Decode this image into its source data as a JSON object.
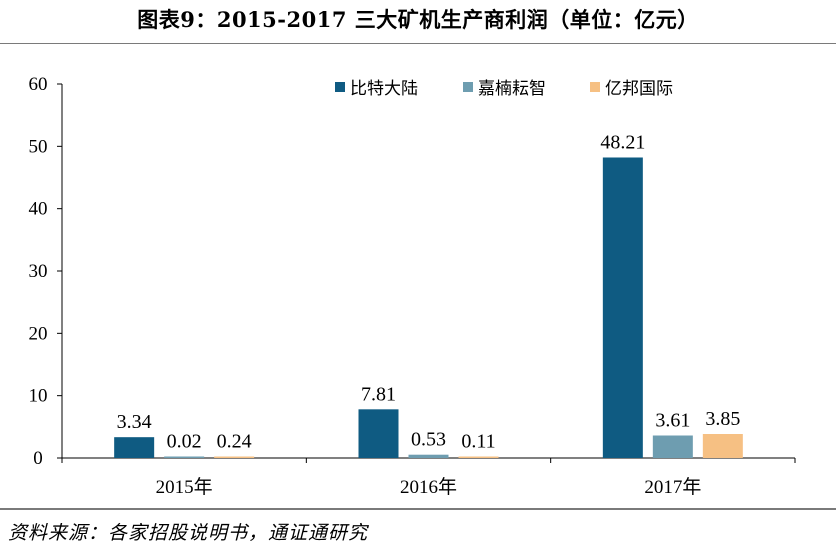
{
  "title": "图表9：2015-2017 三大矿机生产商利润（单位：亿元）",
  "source": "资料来源：各家招股说明书，通证通研究",
  "chart_data": {
    "type": "bar",
    "categories": [
      "2015年",
      "2016年",
      "2017年"
    ],
    "series": [
      {
        "name": "比特大陆",
        "color": "#0f5b82",
        "values": [
          3.34,
          7.81,
          48.21
        ]
      },
      {
        "name": "嘉楠耘智",
        "color": "#6e9db0",
        "values": [
          0.02,
          0.53,
          3.61
        ]
      },
      {
        "name": "亿邦国际",
        "color": "#f6c083",
        "values": [
          0.24,
          0.11,
          3.85
        ]
      }
    ],
    "ylim": [
      0,
      60
    ],
    "yticks": [
      0,
      10,
      20,
      30,
      40,
      50,
      60
    ],
    "legend_position": "top-right",
    "grid": false
  }
}
